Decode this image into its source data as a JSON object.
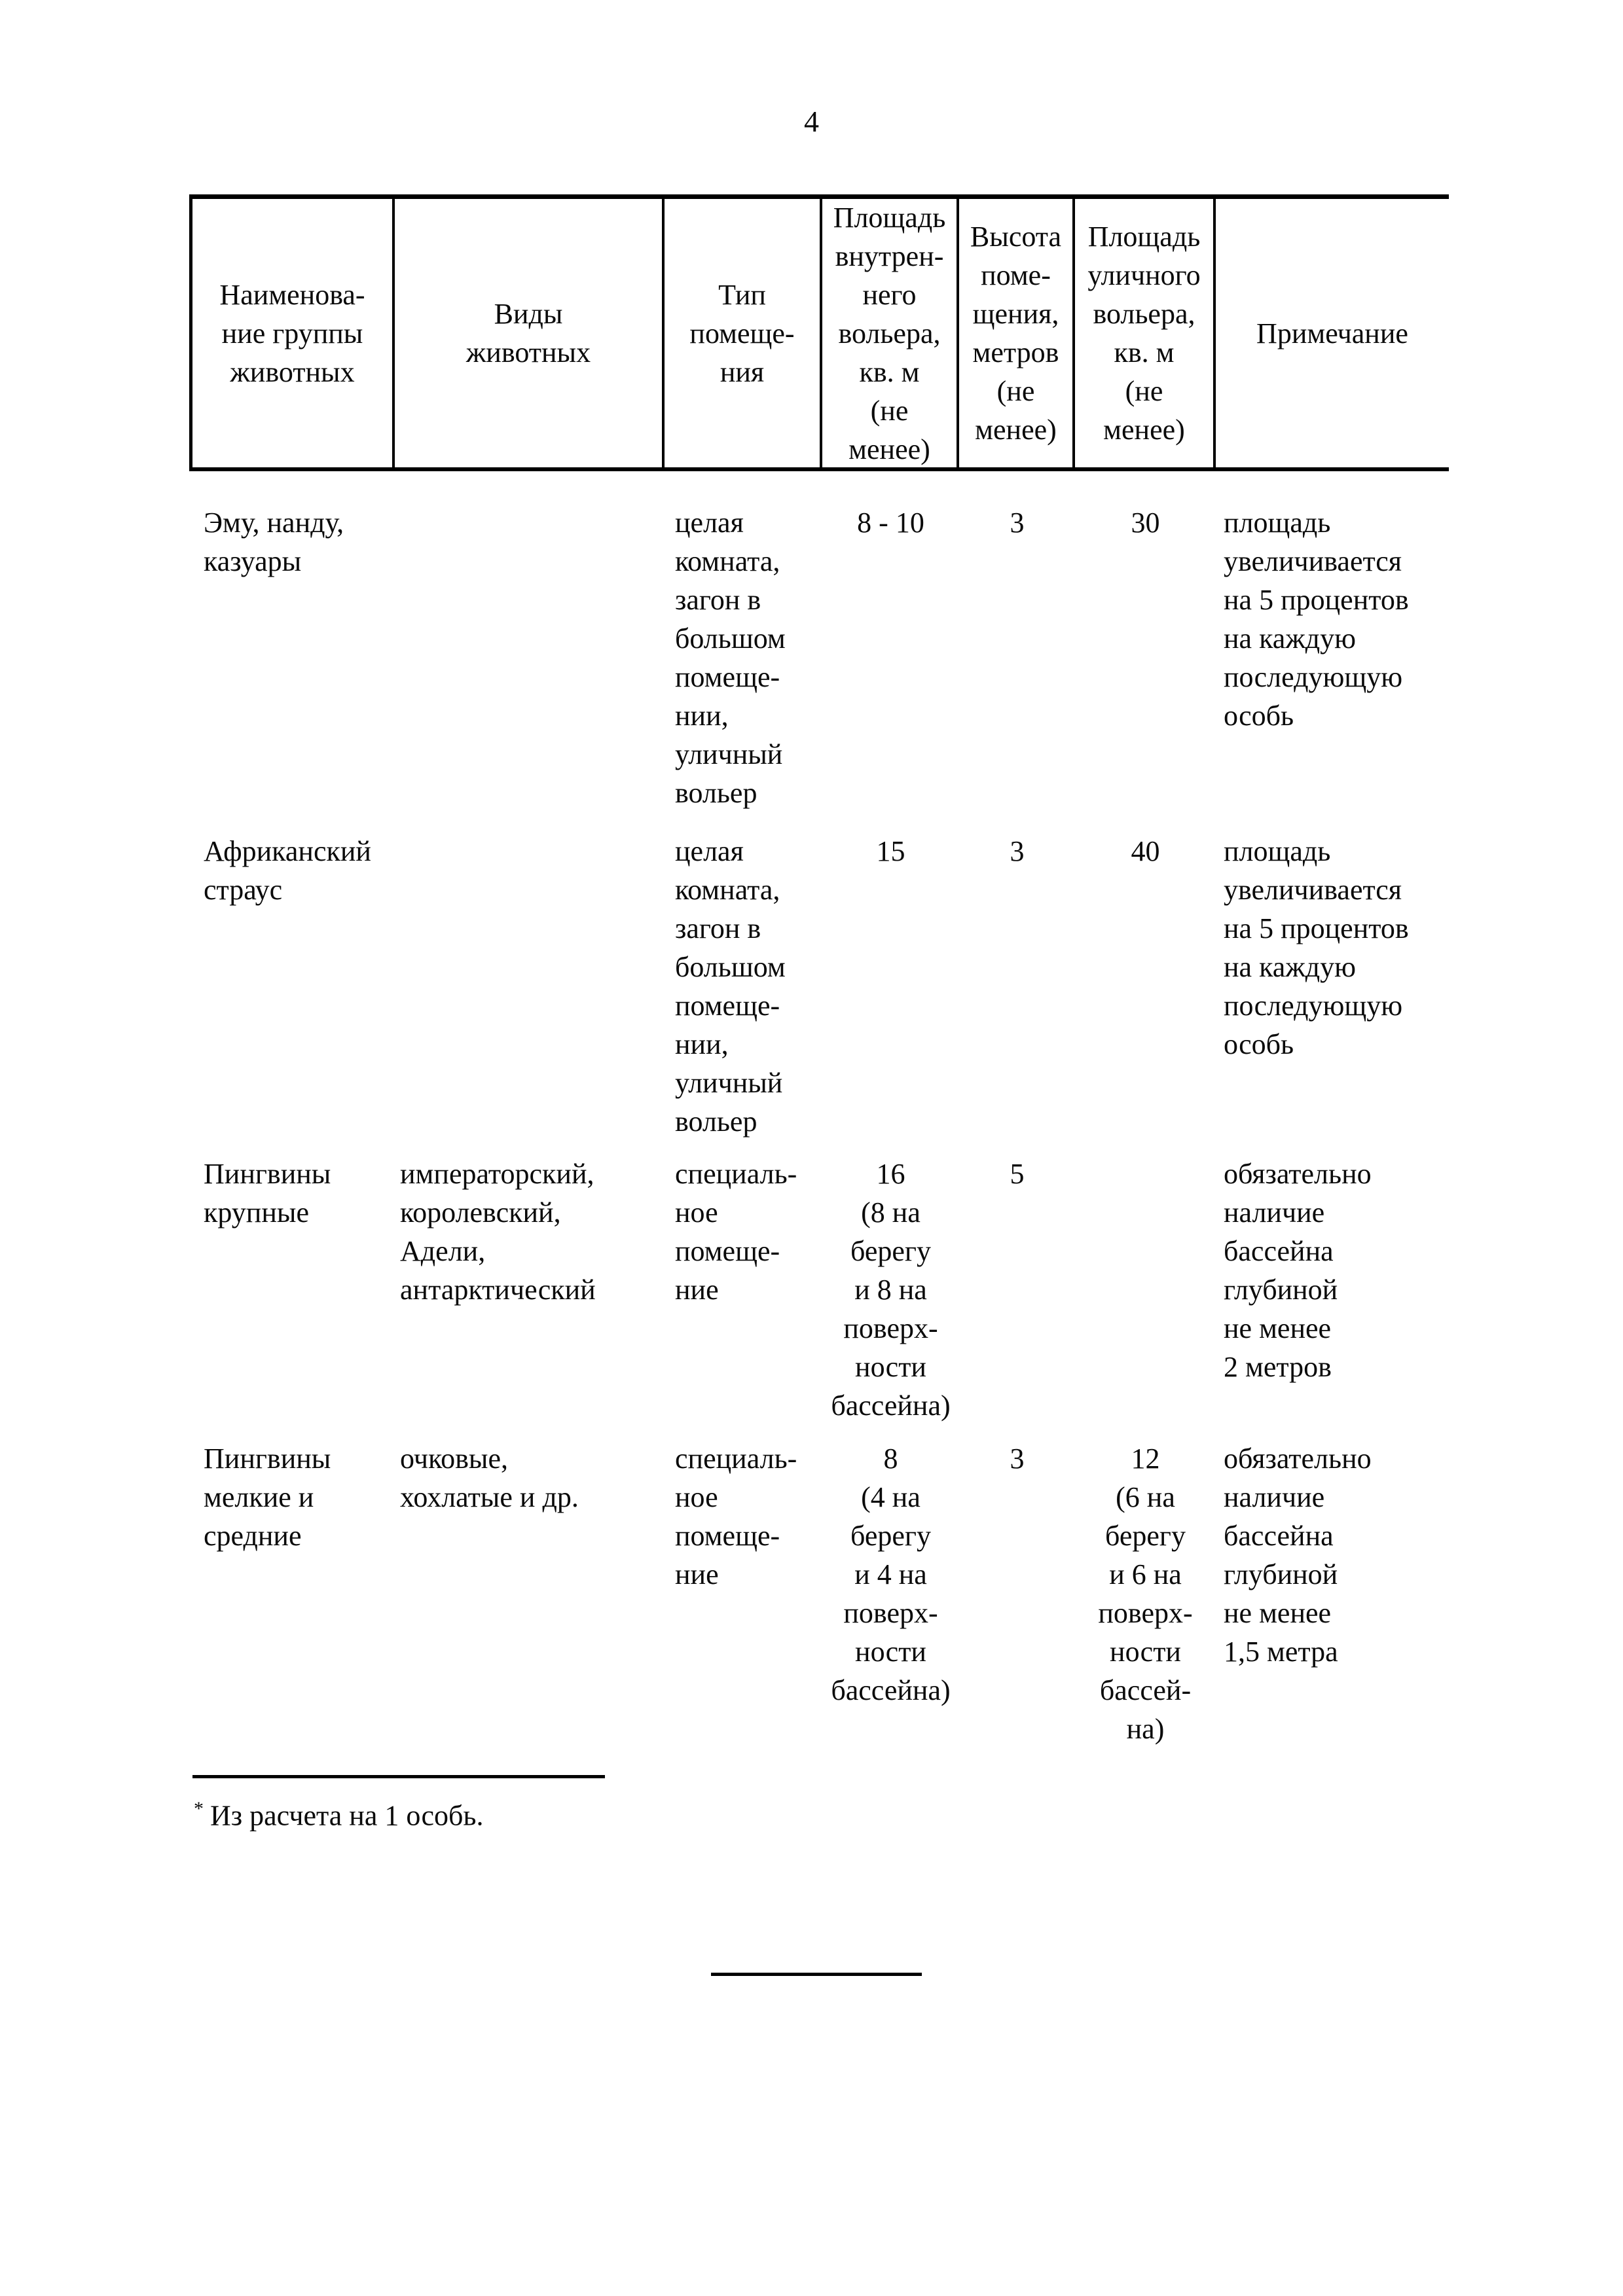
{
  "page": {
    "number": "4"
  },
  "table": {
    "headers": {
      "group": "Наименова-\nние группы\nживотных",
      "species": "Виды\nживотных",
      "room_type": "Тип\nпомеще-\nния",
      "indoor_area": "Площадь\nвнутрен-\nнего\nвольера,\nкв. м\n(не\nменее)",
      "height": "Высота\nпоме-\nщения,\nметров\n(не\nменее)",
      "outdoor_area": "Площадь\nуличного\nвольера,\nкв. м\n(не\nменее)",
      "note": "Примечание"
    },
    "rows": [
      {
        "group": "Эму, нанду,\nказуары",
        "species": "",
        "room_type": "целая\nкомната,\nзагон в\nбольшом\nпомеще-\nнии,\nуличный\nвольер",
        "indoor_area": "8 - 10",
        "height": "3",
        "outdoor_area": "30",
        "note": "площадь\nувеличивается\nна 5 процентов\nна каждую\nпоследующую\nособь"
      },
      {
        "group": "Африканский\nстраус",
        "species": "",
        "room_type": "целая\nкомната,\nзагон в\nбольшом\nпомеще-\nнии,\nуличный\nвольер",
        "indoor_area": "15",
        "height": "3",
        "outdoor_area": "40",
        "note": "площадь\nувеличивается\nна 5 процентов\nна каждую\nпоследующую\nособь"
      },
      {
        "group": "Пингвины\nкрупные",
        "species": "императорский,\nкоролевский,\nАдели,\nантарктический",
        "room_type": "специаль-\nное\nпомеще-\nние",
        "indoor_area": "16\n(8 на\nберегу\nи 8 на\nповерх-\nности\nбассейна)",
        "height": "5",
        "outdoor_area": "",
        "note": "обязательно\nналичие\nбассейна\nглубиной\nне менее\n2 метров"
      },
      {
        "group": "Пингвины\nмелкие и\nсредние",
        "species": "очковые,\nхохлатые и др.",
        "room_type": "специаль-\nное\nпомеще-\nние",
        "indoor_area": "8\n(4 на\nберегу\nи 4 на\nповерх-\nности\nбассейна)",
        "height": "3",
        "outdoor_area": "12\n(6 на\nберегу\nи 6 на\nповерх-\nности\nбассей-\nна)",
        "note": "обязательно\nналичие\nбассейна\nглубиной\nне менее\n1,5 метра"
      }
    ]
  },
  "footnote": {
    "marker": "*",
    "text": "Из расчета на 1 особь."
  }
}
